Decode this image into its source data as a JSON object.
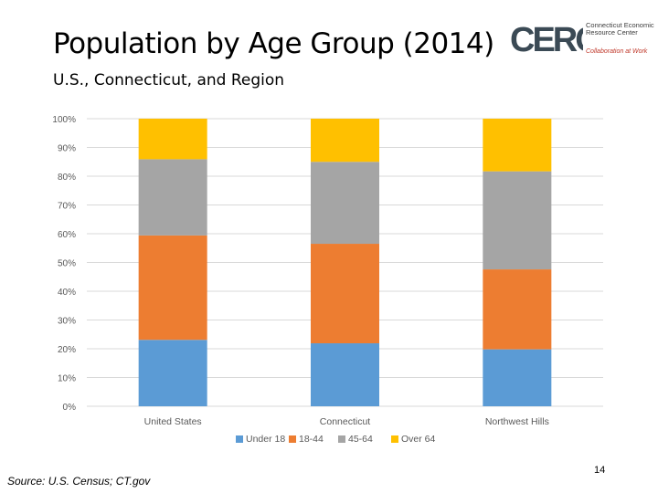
{
  "slide": {
    "title": "Population by Age Group (2014)",
    "subtitle": "U.S., Connecticut, and Region",
    "source": "Source: U.S. Census; CT.gov",
    "page_number": "14"
  },
  "logo": {
    "letters": "CERC",
    "org_name": "Connecticut Economic Resource Center",
    "tagline": "Collaboration at Work",
    "brand_color": "#3b4a55"
  },
  "chart_data": {
    "type": "bar",
    "stacked": true,
    "categories": [
      "United States",
      "Connecticut",
      "Northwest Hills"
    ],
    "series": [
      {
        "name": "Under 18",
        "color": "#5b9bd5",
        "values": [
          23.1,
          21.9,
          19.8
        ]
      },
      {
        "name": "18-44",
        "color": "#ed7d31",
        "values": [
          36.3,
          34.6,
          27.8
        ]
      },
      {
        "name": "45-64",
        "color": "#a5a5a5",
        "values": [
          26.5,
          28.5,
          34.1
        ]
      },
      {
        "name": "Over 64",
        "color": "#ffc000",
        "values": [
          14.1,
          15.0,
          18.3
        ]
      }
    ],
    "y_ticks": [
      "0%",
      "10%",
      "20%",
      "30%",
      "40%",
      "50%",
      "60%",
      "70%",
      "80%",
      "90%",
      "100%"
    ],
    "ylim": [
      0,
      100
    ],
    "grid": true,
    "legend_position": "bottom"
  }
}
